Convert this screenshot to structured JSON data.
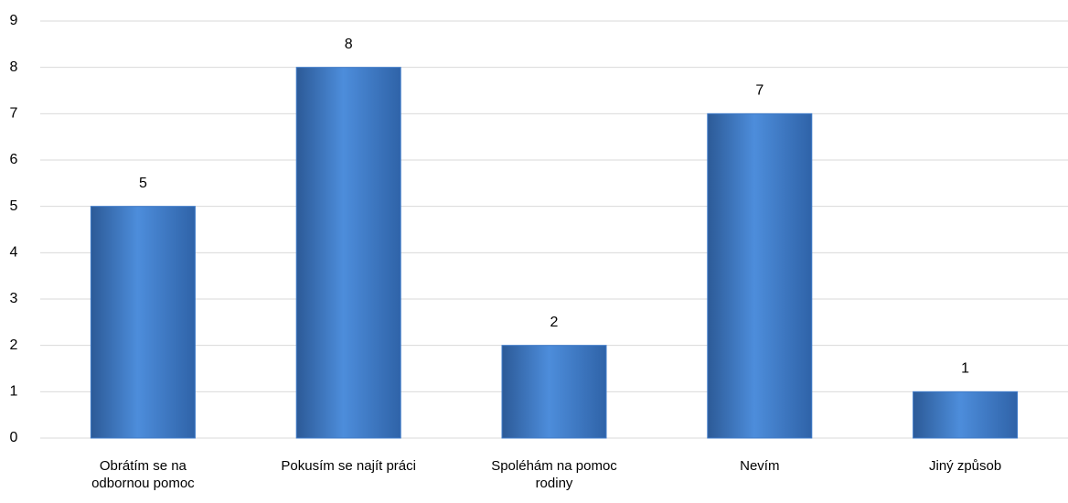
{
  "chart_data": {
    "type": "bar",
    "categories": [
      "Obrátím se na odbornou pomoc",
      "Pokusím se najít práci",
      "Spoléhám na pomoc rodiny",
      "Nevím",
      "Jiný způsob"
    ],
    "values": [
      5,
      8,
      2,
      7,
      1
    ],
    "color": "#3f7bc9",
    "ylim": [
      0,
      9
    ],
    "yticks": [
      0,
      1,
      2,
      3,
      4,
      5,
      6,
      7,
      8,
      9
    ],
    "grid": true
  }
}
